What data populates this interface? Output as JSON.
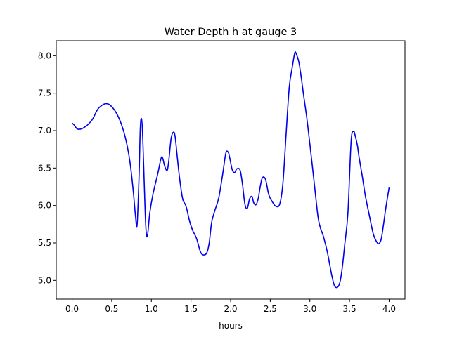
{
  "chart_data": {
    "type": "line",
    "title": "Water Depth h at gauge 3",
    "xlabel": "hours",
    "ylabel": "",
    "xlim": [
      -0.2,
      4.2
    ],
    "ylim": [
      4.75,
      8.2
    ],
    "xticks": [
      0.0,
      0.5,
      1.0,
      1.5,
      2.0,
      2.5,
      3.0,
      3.5,
      4.0
    ],
    "xtick_labels": [
      "0.0",
      "0.5",
      "1.0",
      "1.5",
      "2.0",
      "2.5",
      "3.0",
      "3.5",
      "4.0"
    ],
    "yticks": [
      5.0,
      5.5,
      6.0,
      6.5,
      7.0,
      7.5,
      8.0
    ],
    "ytick_labels": [
      "5.0",
      "5.5",
      "6.0",
      "6.5",
      "7.0",
      "7.5",
      "8.0"
    ],
    "grid": false,
    "colors": {
      "line": "#0000ee",
      "axes": "#000000"
    },
    "series": [
      {
        "x": [
          0.0,
          0.03,
          0.07,
          0.15,
          0.25,
          0.32,
          0.38,
          0.43,
          0.48,
          0.55,
          0.62,
          0.68,
          0.73,
          0.77,
          0.8,
          0.82,
          0.845,
          0.86,
          0.875,
          0.89,
          0.91,
          0.93,
          0.95,
          0.98,
          1.02,
          1.08,
          1.12,
          1.14,
          1.17,
          1.2,
          1.22,
          1.25,
          1.28,
          1.3,
          1.32,
          1.35,
          1.38,
          1.4,
          1.43,
          1.45,
          1.48,
          1.52,
          1.57,
          1.62,
          1.66,
          1.7,
          1.73,
          1.76,
          1.8,
          1.85,
          1.9,
          1.94,
          1.97,
          1.99,
          2.02,
          2.05,
          2.08,
          2.12,
          2.15,
          2.18,
          2.21,
          2.24,
          2.27,
          2.29,
          2.32,
          2.35,
          2.37,
          2.4,
          2.44,
          2.48,
          2.52,
          2.57,
          2.62,
          2.66,
          2.7,
          2.74,
          2.78,
          2.81,
          2.83,
          2.86,
          2.89,
          2.92,
          2.96,
          3.0,
          3.05,
          3.1,
          3.13,
          3.17,
          3.22,
          3.27,
          3.31,
          3.35,
          3.38,
          3.41,
          3.44,
          3.48,
          3.52,
          3.55,
          3.57,
          3.6,
          3.62,
          3.66,
          3.7,
          3.75,
          3.8,
          3.84,
          3.87,
          3.9,
          3.93,
          3.96,
          4.0
        ],
        "y": [
          7.1,
          7.07,
          7.02,
          7.04,
          7.14,
          7.28,
          7.34,
          7.36,
          7.34,
          7.25,
          7.09,
          6.87,
          6.58,
          6.21,
          5.86,
          5.74,
          6.4,
          7.02,
          7.16,
          6.95,
          6.3,
          5.72,
          5.59,
          5.9,
          6.15,
          6.42,
          6.62,
          6.64,
          6.52,
          6.47,
          6.6,
          6.9,
          6.98,
          6.92,
          6.72,
          6.42,
          6.18,
          6.07,
          6.01,
          5.94,
          5.8,
          5.67,
          5.56,
          5.38,
          5.34,
          5.37,
          5.5,
          5.77,
          5.93,
          6.1,
          6.42,
          6.7,
          6.71,
          6.63,
          6.48,
          6.44,
          6.49,
          6.47,
          6.28,
          6.02,
          5.96,
          6.09,
          6.12,
          6.04,
          6.01,
          6.1,
          6.23,
          6.37,
          6.35,
          6.15,
          6.06,
          5.99,
          6.02,
          6.3,
          6.95,
          7.58,
          7.86,
          8.04,
          8.02,
          7.92,
          7.72,
          7.48,
          7.18,
          6.82,
          6.35,
          5.87,
          5.71,
          5.59,
          5.38,
          5.1,
          4.93,
          4.91,
          4.98,
          5.18,
          5.48,
          5.9,
          6.85,
          6.99,
          6.94,
          6.8,
          6.65,
          6.4,
          6.13,
          5.87,
          5.62,
          5.52,
          5.49,
          5.55,
          5.75,
          5.98,
          6.24
        ]
      }
    ]
  }
}
